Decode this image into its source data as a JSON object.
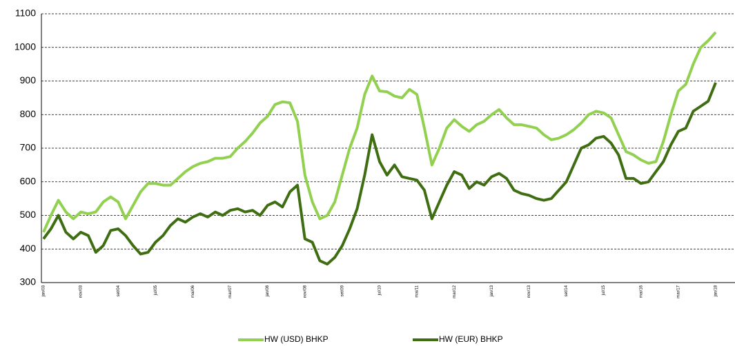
{
  "chart_data": {
    "type": "line",
    "categories": [
      "jan/03",
      null,
      null,
      null,
      null,
      "nov/03",
      null,
      null,
      null,
      null,
      "set/04",
      null,
      null,
      null,
      null,
      "jul/05",
      null,
      null,
      null,
      null,
      "mai/06",
      null,
      null,
      null,
      null,
      "mar/07",
      null,
      null,
      null,
      null,
      "jan/08",
      null,
      null,
      null,
      null,
      "nov/08",
      null,
      null,
      null,
      null,
      "set/09",
      null,
      null,
      null,
      null,
      "jul/10",
      null,
      null,
      null,
      null,
      "mai/11",
      null,
      null,
      null,
      null,
      "mar/12",
      null,
      null,
      null,
      null,
      "jan/13",
      null,
      null,
      null,
      null,
      "nov/13",
      null,
      null,
      null,
      null,
      "set/14",
      null,
      null,
      null,
      null,
      "jul/15",
      null,
      null,
      null,
      null,
      "mai/16",
      null,
      null,
      null,
      null,
      "mar/17",
      null,
      null,
      null,
      null,
      "jan/18"
    ],
    "series": [
      {
        "name": "HW (USD) BHKP",
        "color": "#92d050",
        "values": [
          450,
          500,
          545,
          510,
          490,
          510,
          505,
          510,
          540,
          555,
          540,
          490,
          530,
          570,
          595,
          595,
          590,
          590,
          610,
          630,
          645,
          655,
          660,
          670,
          670,
          675,
          700,
          720,
          745,
          775,
          795,
          830,
          838,
          835,
          780,
          620,
          540,
          490,
          500,
          540,
          620,
          700,
          760,
          860,
          915,
          870,
          868,
          855,
          850,
          875,
          860,
          760,
          650,
          700,
          760,
          785,
          765,
          750,
          770,
          780,
          800,
          815,
          790,
          770,
          770,
          765,
          760,
          740,
          725,
          730,
          740,
          755,
          775,
          800,
          810,
          805,
          790,
          740,
          690,
          680,
          665,
          655,
          660,
          720,
          800,
          870,
          890,
          950,
          1000,
          1020,
          1045
        ]
      },
      {
        "name": "HW (EUR) BHKP",
        "color": "#3f6e12",
        "values": [
          430,
          460,
          500,
          450,
          430,
          450,
          440,
          390,
          410,
          455,
          460,
          440,
          410,
          385,
          390,
          420,
          440,
          470,
          490,
          480,
          495,
          505,
          495,
          510,
          500,
          515,
          520,
          510,
          515,
          500,
          530,
          540,
          525,
          570,
          590,
          430,
          420,
          365,
          355,
          375,
          410,
          460,
          520,
          620,
          740,
          660,
          620,
          650,
          615,
          610,
          605,
          575,
          490,
          540,
          590,
          630,
          620,
          580,
          600,
          590,
          615,
          625,
          610,
          575,
          565,
          560,
          550,
          545,
          550,
          575,
          600,
          650,
          700,
          710,
          730,
          735,
          715,
          680,
          610,
          610,
          595,
          600,
          630,
          660,
          710,
          750,
          760,
          810,
          825,
          840,
          895
        ]
      }
    ],
    "ylim": [
      300,
      1100
    ],
    "yticks": [
      300,
      400,
      500,
      600,
      700,
      800,
      900,
      1000,
      1100
    ],
    "grid": true,
    "legend": "bottom"
  }
}
